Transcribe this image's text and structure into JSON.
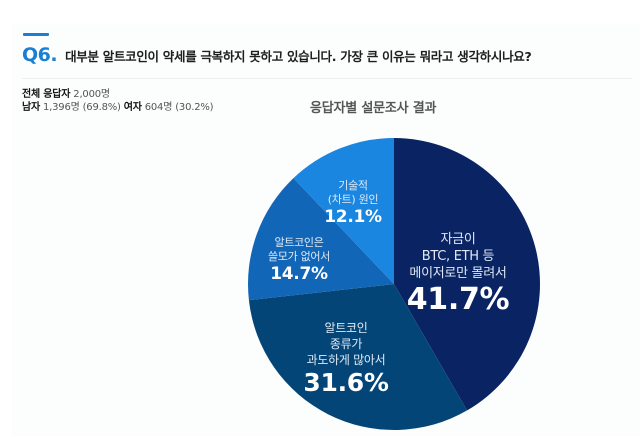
{
  "question": {
    "number": "Q6.",
    "text": "대부분 알트코인이 약세를 극복하지 못하고 있습니다. 가장 큰 이유는 뭐라고 생각하시나요?"
  },
  "stats": {
    "total_label": "전체 응답자",
    "total_value": "2,000명",
    "male_label": "남자",
    "male_value": "1,396명 (69.8%)",
    "female_label": "여자",
    "female_value": "604명 (30.2%)"
  },
  "chart_data": {
    "type": "pie",
    "title": "응답자별 설문조사 결과",
    "categories": [
      "자금이 BTC, ETH 등 메이저로만 몰려서",
      "알트코인 종류가 과도하게 많아서",
      "알트코인은 쓸모가 없어서",
      "기술적 (차트) 원인"
    ],
    "values": [
      41.7,
      31.6,
      14.7,
      12.1
    ],
    "colors": [
      "#0a2463",
      "#044577",
      "#1266b8",
      "#1a86e0"
    ],
    "start_angle": "12 o'clock, clockwise",
    "labels": [
      {
        "lines": [
          "자금이",
          "BTC, ETH 등",
          "메이저로만 몰려서"
        ],
        "percent": "41.7%"
      },
      {
        "lines": [
          "알트코인",
          "종류가",
          "과도하게 많아서"
        ],
        "percent": "31.6%"
      },
      {
        "lines": [
          "알트코인은",
          "쓸모가 없어서"
        ],
        "percent": "14.7%"
      },
      {
        "lines": [
          "기술적",
          "(차트) 원인"
        ],
        "percent": "12.1%"
      }
    ]
  }
}
